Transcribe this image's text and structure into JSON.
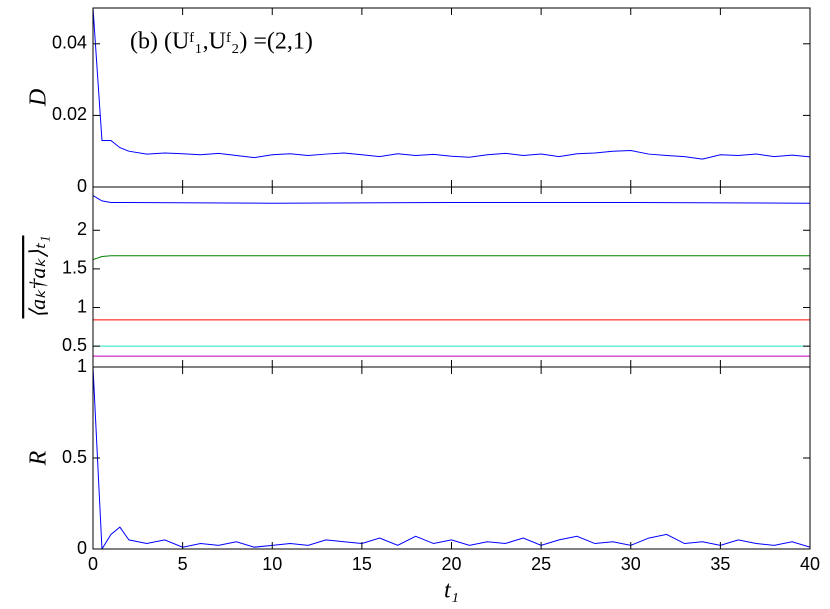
{
  "chart_data": [
    {
      "type": "line",
      "ylabel": "D",
      "annotation": "(b) (Uᶠ₁,Uᶠ₂) =(2,1)",
      "x": [
        0,
        0.5,
        1,
        1.5,
        2,
        3,
        4,
        5,
        6,
        7,
        8,
        9,
        10,
        11,
        12,
        13,
        14,
        15,
        16,
        17,
        18,
        19,
        20,
        21,
        22,
        23,
        24,
        25,
        26,
        27,
        28,
        29,
        30,
        31,
        32,
        33,
        34,
        35,
        36,
        37,
        38,
        39,
        40
      ],
      "series": [
        {
          "color": "#0000ff",
          "values": [
            0.05,
            0.013,
            0.013,
            0.011,
            0.01,
            0.0092,
            0.0095,
            0.0093,
            0.009,
            0.0094,
            0.0088,
            0.0082,
            0.009,
            0.0093,
            0.0088,
            0.0092,
            0.0095,
            0.009,
            0.0085,
            0.0093,
            0.0088,
            0.0091,
            0.0086,
            0.0083,
            0.009,
            0.0094,
            0.0088,
            0.0092,
            0.0085,
            0.0093,
            0.0095,
            0.01,
            0.0102,
            0.0092,
            0.0088,
            0.0085,
            0.0078,
            0.009,
            0.0088,
            0.0092,
            0.0085,
            0.0089,
            0.0084
          ]
        }
      ],
      "xlim": [
        0,
        40
      ],
      "xticks": [
        0,
        5,
        10,
        15,
        20,
        25,
        30,
        35,
        40
      ],
      "ylim": [
        0,
        0.05
      ],
      "yticks": [
        0,
        0.02,
        0.04
      ]
    },
    {
      "type": "line",
      "ylabel": "⟨aₖ†aₖ⟩ₜ₁",
      "x": [
        0,
        0.5,
        1,
        10,
        20,
        30,
        40
      ],
      "series": [
        {
          "color": "#0000ff",
          "values": [
            2.45,
            2.38,
            2.36,
            2.35,
            2.36,
            2.36,
            2.35
          ]
        },
        {
          "color": "#008000",
          "values": [
            1.62,
            1.66,
            1.67,
            1.67,
            1.67,
            1.67,
            1.67
          ]
        },
        {
          "color": "#ff0000",
          "values": [
            0.84,
            0.84,
            0.84,
            0.84,
            0.84,
            0.84,
            0.84
          ]
        },
        {
          "color": "#20e0c0",
          "values": [
            0.5,
            0.5,
            0.5,
            0.5,
            0.5,
            0.5,
            0.5
          ]
        },
        {
          "color": "#bf00bf",
          "values": [
            0.37,
            0.37,
            0.37,
            0.37,
            0.37,
            0.37,
            0.37
          ]
        }
      ],
      "xlim": [
        0,
        40
      ],
      "xticks": [
        0,
        5,
        10,
        15,
        20,
        25,
        30,
        35,
        40
      ],
      "ylim": [
        0.23,
        2.56
      ],
      "yticks": [
        0.5,
        1,
        1.5,
        2
      ]
    },
    {
      "type": "line",
      "ylabel": "R",
      "xlabel": "t₁",
      "x": [
        0,
        0.5,
        1,
        1.5,
        2,
        3,
        4,
        5,
        6,
        7,
        8,
        9,
        10,
        11,
        12,
        13,
        14,
        15,
        16,
        17,
        18,
        19,
        20,
        21,
        22,
        23,
        24,
        25,
        26,
        27,
        28,
        29,
        30,
        31,
        32,
        33,
        34,
        35,
        36,
        37,
        38,
        39,
        40
      ],
      "series": [
        {
          "color": "#0000ff",
          "values": [
            1,
            0,
            0.08,
            0.12,
            0.05,
            0.03,
            0.05,
            0.01,
            0.03,
            0.02,
            0.04,
            0.01,
            0.02,
            0.03,
            0.02,
            0.05,
            0.04,
            0.03,
            0.06,
            0.02,
            0.07,
            0.03,
            0.05,
            0.02,
            0.04,
            0.03,
            0.06,
            0.02,
            0.05,
            0.07,
            0.03,
            0.04,
            0.02,
            0.06,
            0.08,
            0.03,
            0.04,
            0.02,
            0.05,
            0.03,
            0.02,
            0.04,
            0.01
          ]
        }
      ],
      "xlim": [
        0,
        40
      ],
      "xticks": [
        0,
        5,
        10,
        15,
        20,
        25,
        30,
        35,
        40
      ],
      "ylim": [
        0,
        1
      ],
      "yticks": [
        0,
        0.5,
        1
      ]
    }
  ]
}
